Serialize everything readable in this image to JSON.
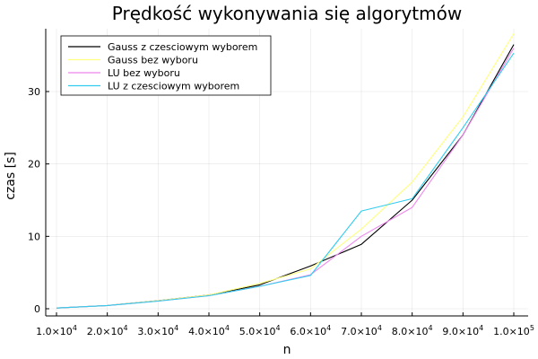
{
  "chart_data": {
    "type": "line",
    "title": "Prędkość wykonywania się algorytmów",
    "xlabel": "n",
    "ylabel": "czas [s]",
    "xlim": [
      10000,
      100000
    ],
    "ylim": [
      0,
      38
    ],
    "x": [
      10000,
      20000,
      30000,
      40000,
      50000,
      60000,
      70000,
      80000,
      90000,
      100000
    ],
    "x_tick_labels": [
      {
        "mantissa": "1.0×10",
        "exp": "4"
      },
      {
        "mantissa": "2.0×10",
        "exp": "4"
      },
      {
        "mantissa": "3.0×10",
        "exp": "4"
      },
      {
        "mantissa": "4.0×10",
        "exp": "4"
      },
      {
        "mantissa": "5.0×10",
        "exp": "4"
      },
      {
        "mantissa": "6.0×10",
        "exp": "4"
      },
      {
        "mantissa": "7.0×10",
        "exp": "4"
      },
      {
        "mantissa": "8.0×10",
        "exp": "4"
      },
      {
        "mantissa": "9.0×10",
        "exp": "4"
      },
      {
        "mantissa": "1.0×10",
        "exp": "5"
      }
    ],
    "y_ticks": [
      0,
      10,
      20,
      30
    ],
    "grid": true,
    "legend_position": "top-left",
    "series": [
      {
        "name": "Gauss z czesciowym wyborem",
        "color": "#000000",
        "values": [
          0.1,
          0.45,
          1.1,
          1.9,
          3.3,
          5.9,
          8.9,
          15.0,
          24.0,
          36.5
        ]
      },
      {
        "name": "Gauss bez wyboru",
        "color": "#ffff80",
        "values": [
          0.1,
          0.45,
          1.1,
          1.9,
          3.5,
          5.5,
          11.0,
          17.5,
          26.5,
          38.0
        ]
      },
      {
        "name": "LU bez wyboru",
        "color": "#ee88ee",
        "values": [
          0.1,
          0.45,
          1.05,
          1.8,
          3.1,
          4.7,
          10.0,
          14.0,
          24.0,
          36.0
        ]
      },
      {
        "name": "LU z czesciowym wyborem",
        "color": "#33ccee",
        "values": [
          0.1,
          0.45,
          1.05,
          1.8,
          3.1,
          4.6,
          13.5,
          15.2,
          25.0,
          35.3
        ]
      }
    ]
  }
}
